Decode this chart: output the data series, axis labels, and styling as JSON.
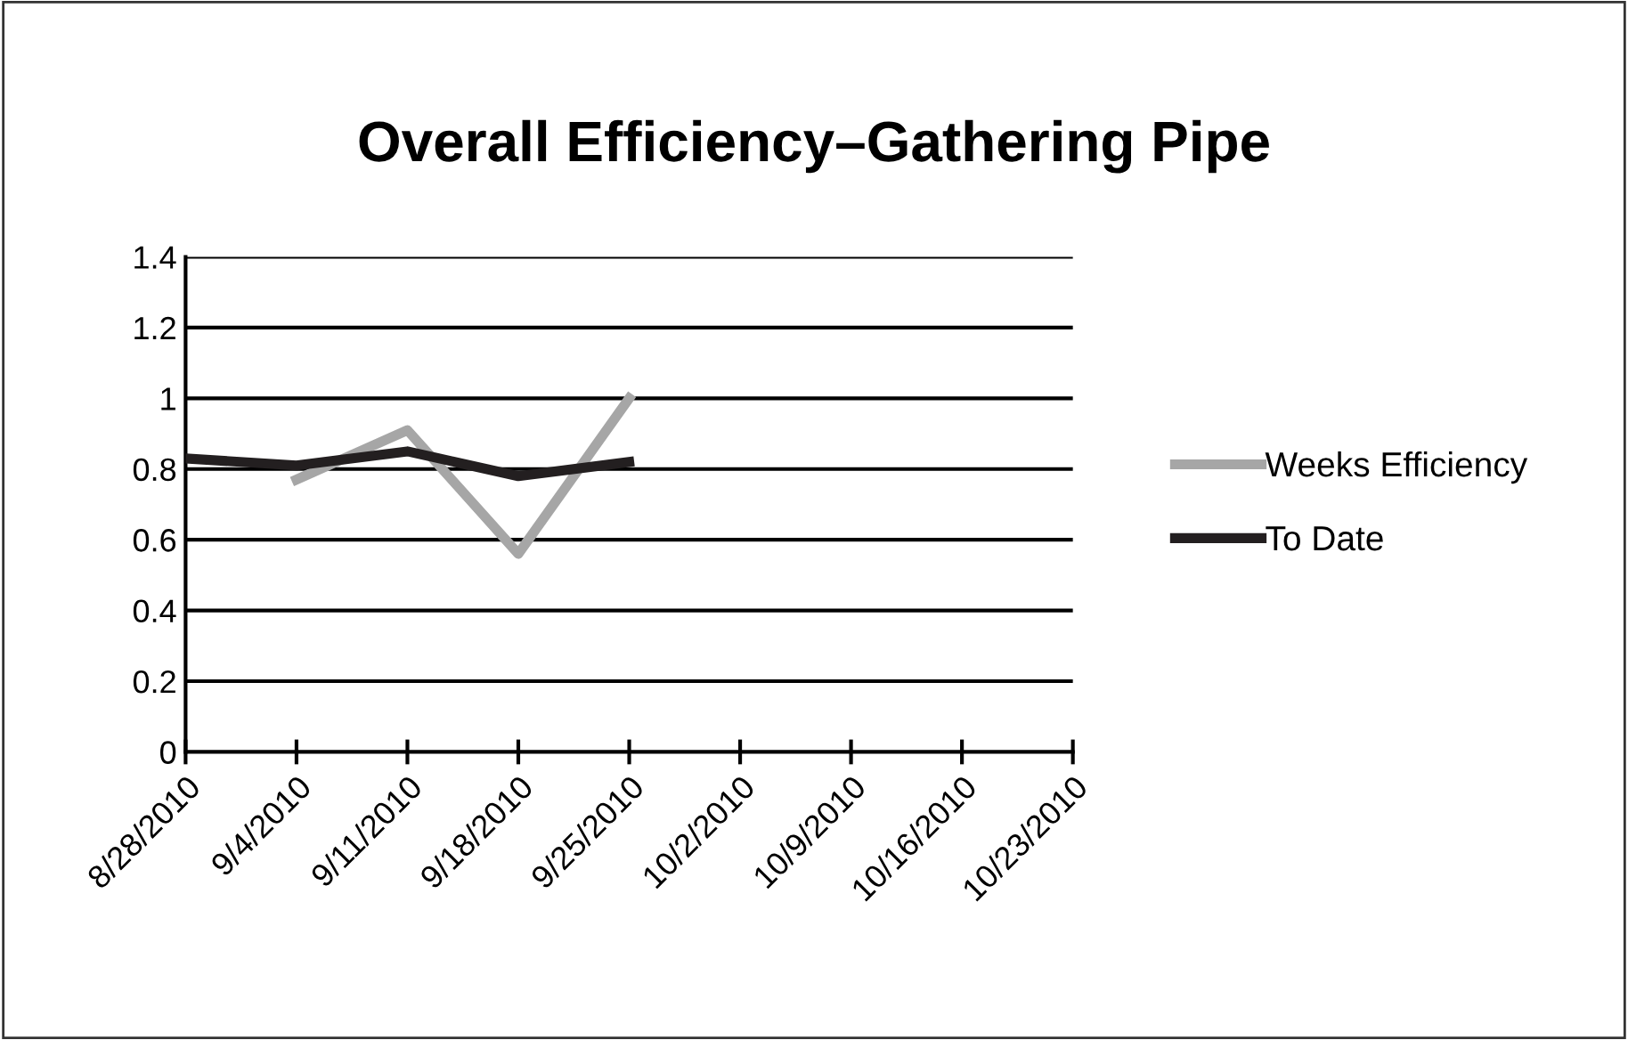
{
  "chart_data": {
    "type": "line",
    "title": "Overall Efficiency–Gathering Pipe",
    "categories": [
      "8/28/2010",
      "9/4/2010",
      "9/11/2010",
      "9/18/2010",
      "9/25/2010",
      "10/2/2010",
      "10/9/2010",
      "10/16/2010",
      "10/23/2010"
    ],
    "series": [
      {
        "name": "Weeks Efficiency",
        "color": "#a6a6a6",
        "values": [
          null,
          0.77,
          0.91,
          0.56,
          1.0,
          null,
          null,
          null,
          null
        ]
      },
      {
        "name": "To Date",
        "color": "#231f20",
        "values": [
          0.83,
          0.81,
          0.85,
          0.78,
          0.82,
          null,
          null,
          null,
          null
        ]
      }
    ],
    "ylim": [
      0,
      1.4
    ],
    "yticks": [
      0,
      0.2,
      0.4,
      0.6,
      0.8,
      1,
      1.2,
      1.4
    ],
    "grid": "y",
    "legend": "right",
    "marker": "none",
    "line_style": "solid"
  }
}
